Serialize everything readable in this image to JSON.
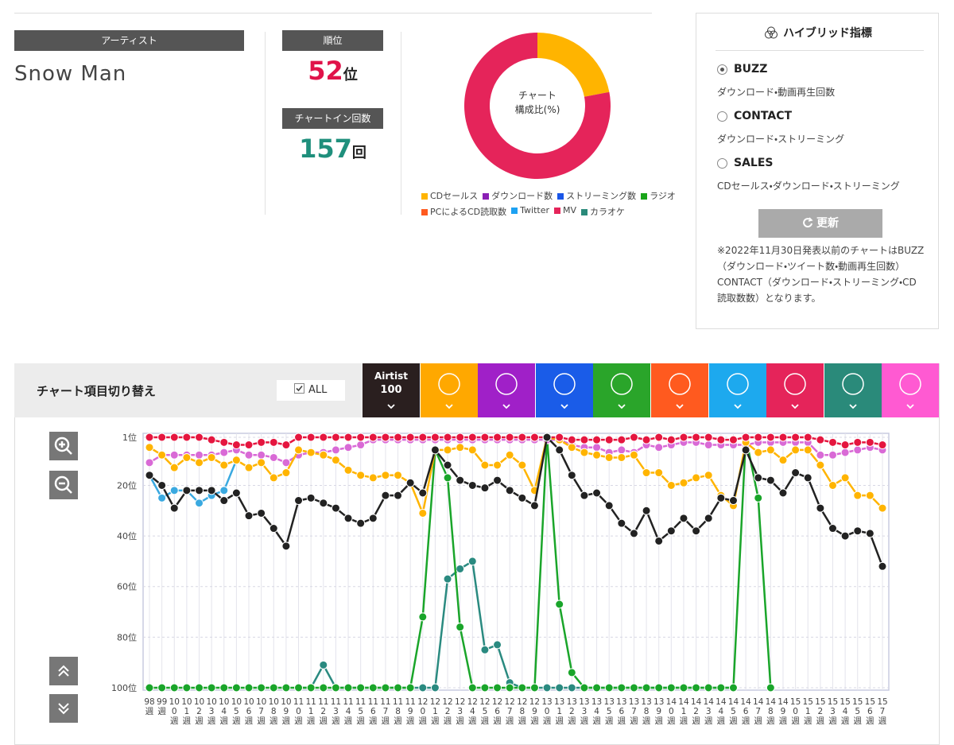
{
  "artist": {
    "label": "アーティスト",
    "name": "Snow Man"
  },
  "rank": {
    "label": "順位",
    "value": 52,
    "unit": "位"
  },
  "chart_in": {
    "label": "チャートイン回数",
    "value": 157,
    "unit": "回"
  },
  "hybrid": {
    "title": "ハイブリッド指標",
    "options": [
      {
        "name": "BUZZ",
        "desc": "ダウンロード・動画再生回数",
        "selected": true
      },
      {
        "name": "CONTACT",
        "desc": "ダウンロード・ストリーミング",
        "selected": false
      },
      {
        "name": "SALES",
        "desc": "CDセールス・ダウンロード・ストリーミング",
        "selected": false
      }
    ],
    "button": "更新",
    "note": "※2022年11月30日発表以前のチャートはBUZZ（ダウンロード・ツイート数・動画再生回数）CONTACT（ダウンロード・ストリーミング・CD読取数数）となります。"
  },
  "section": {
    "title": "チャート項目切り替え",
    "all": "ALL",
    "tab_line1": "Airtist",
    "tab_line2": "100"
  },
  "chart_data": [
    {
      "type": "pie",
      "donut": true,
      "center_line1": "チャート",
      "center_line2": "構成比(%)",
      "categories": [
        "CDセールス",
        "ダウンロード数",
        "ストリーミング数",
        "ラジオ",
        "PCによるCD読取数",
        "Twitter",
        "MV",
        "カラオケ"
      ],
      "values": [
        22,
        0,
        0,
        0,
        0,
        0,
        78,
        0
      ],
      "colors": [
        "#ffb400",
        "#8a1fb5",
        "#1a56e8",
        "#1aa51a",
        "#ff5a1f",
        "#1da1f2",
        "#e5245a",
        "#2a8a7a"
      ]
    },
    {
      "type": "line",
      "reversed": true,
      "grid": true,
      "categories": [
        "98週",
        "99週",
        "100週",
        "101週",
        "102週",
        "103週",
        "104週",
        "105週",
        "106週",
        "107週",
        "108週",
        "109週",
        "110週",
        "111週",
        "112週",
        "113週",
        "114週",
        "115週",
        "116週",
        "117週",
        "118週",
        "119週",
        "120週",
        "121週",
        "122週",
        "123週",
        "124週",
        "125週",
        "126週",
        "127週",
        "128週",
        "129週",
        "130週",
        "131週",
        "132週",
        "133週",
        "134週",
        "135週",
        "136週",
        "137週",
        "138週",
        "139週",
        "140週",
        "141週",
        "142週",
        "143週",
        "144週",
        "145週",
        "146週",
        "147週",
        "148週",
        "149週",
        "150週",
        "151週",
        "152週",
        "153週",
        "154週",
        "155週",
        "156週",
        "157週"
      ],
      "ylim": [
        1,
        100
      ],
      "yticks": [
        {
          "value": 1,
          "label": "1位"
        },
        {
          "value": 20,
          "label": "20位"
        },
        {
          "value": 40,
          "label": "40位"
        },
        {
          "value": 60,
          "label": "60位"
        },
        {
          "value": 80,
          "label": "80位"
        },
        {
          "value": 100,
          "label": "100位"
        }
      ],
      "series": [
        {
          "color": "#2a8a80",
          "values": [
            null,
            null,
            null,
            null,
            null,
            null,
            null,
            null,
            null,
            null,
            null,
            null,
            100,
            100,
            91,
            100,
            100,
            100,
            100,
            100,
            100,
            100,
            100,
            100,
            57,
            53,
            50,
            85,
            83,
            98,
            100,
            100,
            100,
            100,
            100,
            100,
            100,
            100,
            100,
            100,
            100,
            100,
            100,
            100,
            100,
            100,
            100,
            100,
            null,
            null,
            null,
            null,
            null,
            null,
            null,
            null,
            null,
            null,
            null,
            null
          ]
        },
        {
          "color": "#1aa52a",
          "values": [
            100,
            100,
            100,
            100,
            100,
            100,
            100,
            100,
            100,
            100,
            100,
            100,
            100,
            100,
            100,
            100,
            100,
            100,
            100,
            100,
            100,
            100,
            72,
            6,
            17,
            76,
            100,
            100,
            100,
            100,
            100,
            100,
            1,
            67,
            94,
            100,
            100,
            100,
            100,
            100,
            100,
            100,
            100,
            100,
            100,
            100,
            100,
            100,
            1,
            25,
            100,
            null,
            null,
            null,
            null,
            null,
            null,
            null,
            null,
            null
          ]
        },
        {
          "color": "#3aa9e0",
          "values": [
            16,
            25,
            22,
            22,
            27,
            24,
            22,
            10,
            null,
            null,
            null,
            null,
            null,
            null,
            null,
            null,
            null,
            null,
            null,
            null,
            null,
            null,
            null,
            null,
            null,
            null,
            null,
            null,
            null,
            null,
            null,
            null,
            null,
            null,
            null,
            null,
            null,
            null,
            null,
            null,
            null,
            null,
            null,
            null,
            null,
            null,
            null,
            null,
            null,
            null,
            null,
            null,
            null,
            null,
            null,
            null,
            null,
            null,
            null,
            null
          ]
        },
        {
          "color": "#d96ad6",
          "values": [
            11,
            8,
            8,
            8,
            8,
            8,
            7,
            6,
            8,
            8,
            9,
            11,
            8,
            7,
            7,
            6,
            5,
            4,
            2,
            2,
            2,
            2,
            2,
            2,
            2,
            2,
            2,
            2,
            2,
            2,
            2,
            2,
            2,
            2,
            4,
            5,
            5,
            7,
            6,
            7,
            4,
            5,
            4,
            3,
            3,
            4,
            4,
            4,
            4,
            3,
            3,
            3,
            3,
            3,
            8,
            8,
            7,
            6,
            5,
            6
          ]
        },
        {
          "color": "#ffb400",
          "values": [
            5,
            8,
            13,
            9,
            11,
            9,
            12,
            10,
            13,
            11,
            17,
            15,
            6,
            7,
            8,
            10,
            14,
            16,
            17,
            16,
            16,
            19,
            31,
            6,
            6,
            5,
            6,
            12,
            12,
            8,
            12,
            22,
            1,
            2,
            5,
            7,
            8,
            9,
            9,
            8,
            15,
            15,
            20,
            19,
            17,
            16,
            24,
            28,
            3,
            7,
            6,
            10,
            6,
            6,
            12,
            20,
            17,
            24,
            24,
            29
          ]
        },
        {
          "color": "#e5163f",
          "values": [
            1,
            1,
            1,
            1,
            1,
            2,
            3,
            4,
            4,
            3,
            3,
            4,
            1,
            1,
            1,
            1,
            1,
            1,
            1,
            1,
            1,
            1,
            1,
            1,
            1,
            1,
            1,
            1,
            1,
            1,
            1,
            1,
            1,
            1,
            2,
            2,
            2,
            2,
            2,
            1,
            2,
            1,
            2,
            1,
            1,
            1,
            2,
            2,
            1,
            1,
            1,
            1,
            1,
            1,
            2,
            3,
            4,
            3,
            3,
            4
          ]
        },
        {
          "color": "#222222",
          "values": [
            16,
            20,
            29,
            22,
            22,
            22,
            26,
            23,
            32,
            31,
            37,
            44,
            26,
            25,
            27,
            29,
            33,
            35,
            33,
            24,
            24,
            19,
            23,
            6,
            12,
            18,
            20,
            21,
            18,
            22,
            25,
            28,
            1,
            6,
            16,
            24,
            23,
            28,
            35,
            39,
            30,
            42,
            38,
            33,
            38,
            33,
            25,
            26,
            6,
            17,
            18,
            23,
            15,
            17,
            29,
            37,
            40,
            38,
            39,
            52
          ]
        }
      ]
    }
  ]
}
